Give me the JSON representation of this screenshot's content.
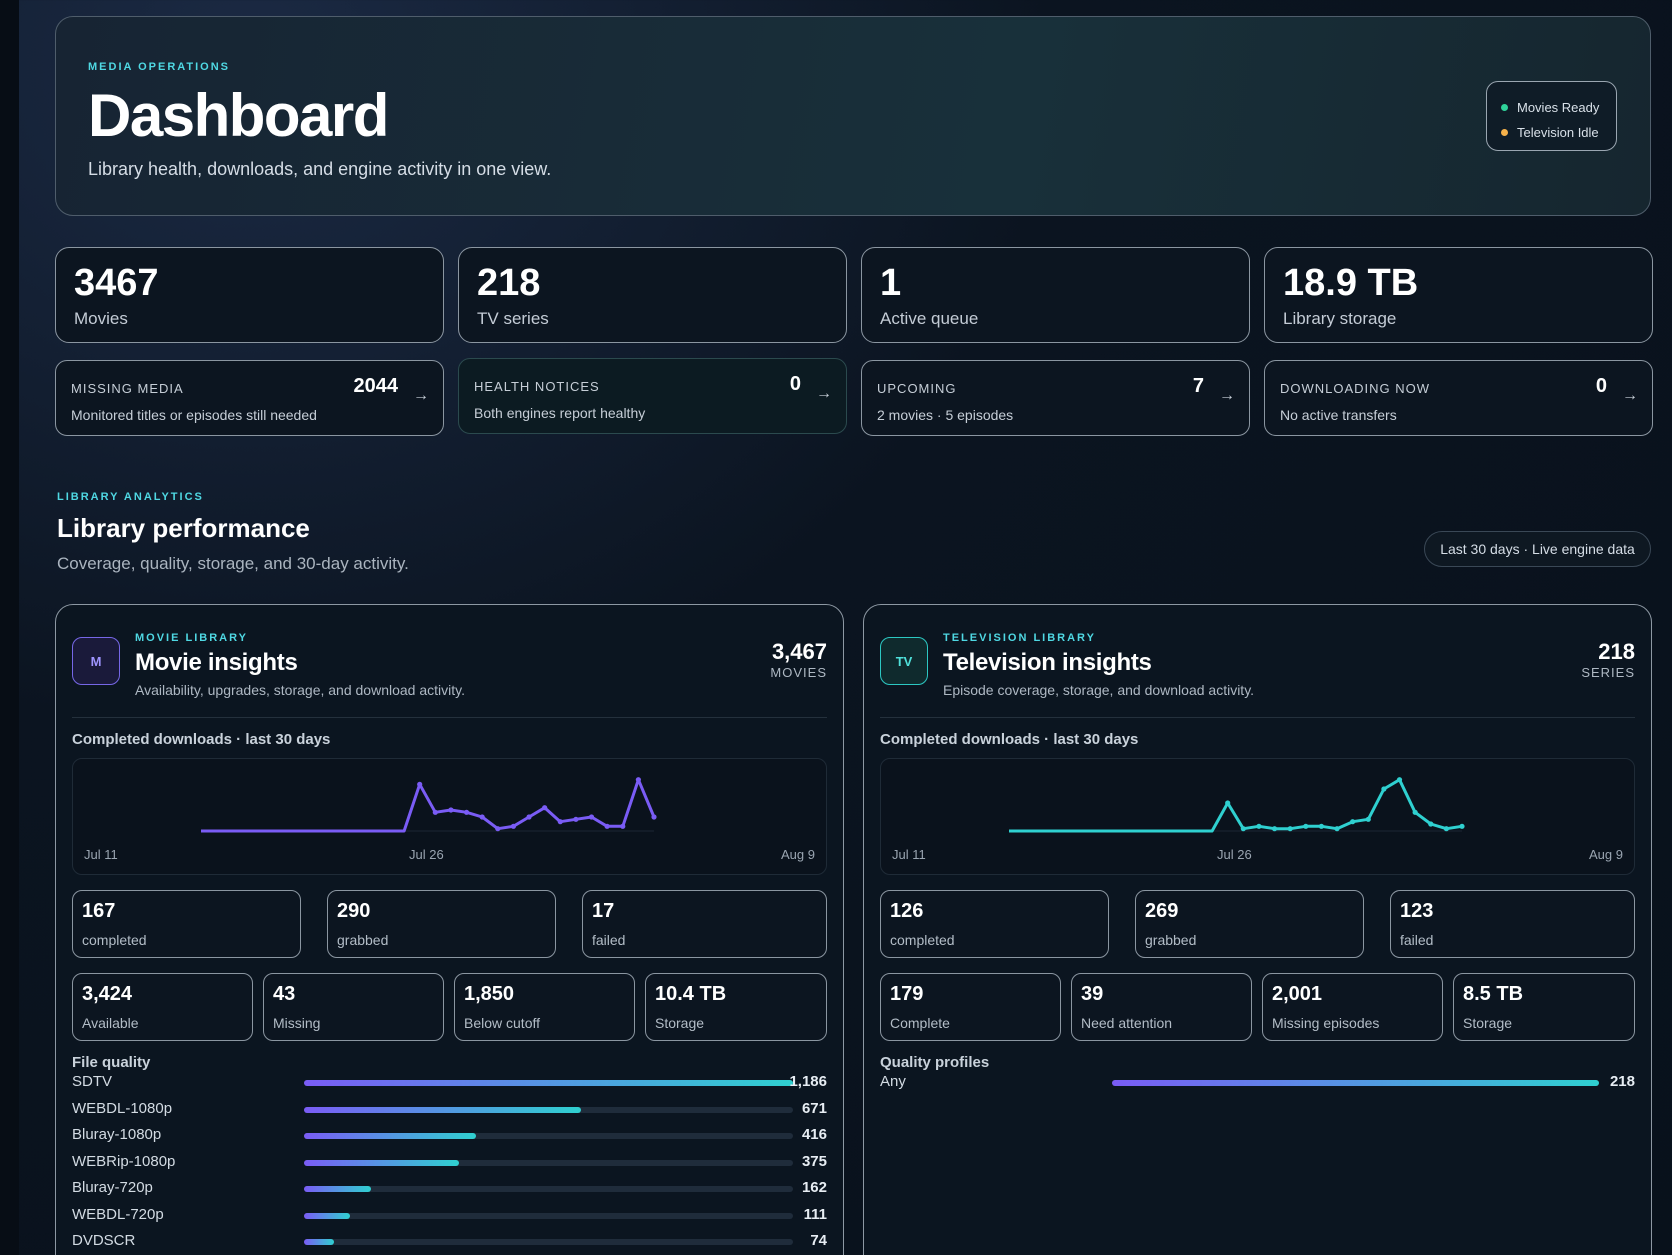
{
  "hero": {
    "eyebrow": "MEDIA OPERATIONS",
    "title": "Dashboard",
    "subtitle": "Library health, downloads, and engine activity in one view.",
    "status": [
      {
        "label": "Movies Ready",
        "color": "#2fd39a"
      },
      {
        "label": "Television Idle",
        "color": "#f5b14a"
      }
    ]
  },
  "stats": [
    {
      "value": "3467",
      "label": "Movies"
    },
    {
      "value": "218",
      "label": "TV series"
    },
    {
      "value": "1",
      "label": "Active queue"
    },
    {
      "value": "18.9 TB",
      "label": "Library storage"
    }
  ],
  "notices": [
    {
      "title": "MISSING MEDIA",
      "desc": "Monitored titles or episodes still needed",
      "value": "2044"
    },
    {
      "title": "HEALTH NOTICES",
      "desc": "Both engines report healthy",
      "value": "0"
    },
    {
      "title": "UPCOMING",
      "desc": "2 movies · 5 episodes",
      "value": "7"
    },
    {
      "title": "DOWNLOADING NOW",
      "desc": "No active transfers",
      "value": "0"
    }
  ],
  "analytics": {
    "eyebrow": "LIBRARY ANALYTICS",
    "title": "Library performance",
    "subtitle": "Coverage, quality, storage, and 30-day activity.",
    "range": "Last 30 days · Live engine data"
  },
  "movie": {
    "badge": "M",
    "eyebrow": "MOVIE LIBRARY",
    "title": "Movie insights",
    "subtitle": "Availability, upgrades, storage, and download activity.",
    "count": "3,467",
    "count_label": "MOVIES",
    "chart_title": "Completed downloads · last 30 days",
    "axis": [
      "Jul 11",
      "Jul 26",
      "Aug 9"
    ],
    "activity": [
      {
        "value": "167",
        "label": "completed"
      },
      {
        "value": "290",
        "label": "grabbed"
      },
      {
        "value": "17",
        "label": "failed"
      }
    ],
    "library": [
      {
        "value": "3,424",
        "label": "Available"
      },
      {
        "value": "43",
        "label": "Missing"
      },
      {
        "value": "1,850",
        "label": "Below cutoff"
      },
      {
        "value": "10.4 TB",
        "label": "Storage"
      }
    ],
    "quality_title": "File quality",
    "quality": [
      {
        "name": "SDTV",
        "value": "1,186",
        "fraction": 1.0
      },
      {
        "name": "WEBDL-1080p",
        "value": "671",
        "fraction": 0.566
      },
      {
        "name": "Bluray-1080p",
        "value": "416",
        "fraction": 0.351
      },
      {
        "name": "WEBRip-1080p",
        "value": "375",
        "fraction": 0.316
      },
      {
        "name": "Bluray-720p",
        "value": "162",
        "fraction": 0.137
      },
      {
        "name": "WEBDL-720p",
        "value": "111",
        "fraction": 0.094
      },
      {
        "name": "DVDSCR",
        "value": "74",
        "fraction": 0.062
      }
    ]
  },
  "tv": {
    "badge": "TV",
    "eyebrow": "TELEVISION LIBRARY",
    "title": "Television insights",
    "subtitle": "Episode coverage, storage, and download activity.",
    "count": "218",
    "count_label": "SERIES",
    "chart_title": "Completed downloads · last 30 days",
    "axis": [
      "Jul 11",
      "Jul 26",
      "Aug 9"
    ],
    "activity": [
      {
        "value": "126",
        "label": "completed"
      },
      {
        "value": "269",
        "label": "grabbed"
      },
      {
        "value": "123",
        "label": "failed"
      }
    ],
    "library": [
      {
        "value": "179",
        "label": "Complete"
      },
      {
        "value": "39",
        "label": "Need attention"
      },
      {
        "value": "2,001",
        "label": "Missing episodes"
      },
      {
        "value": "8.5 TB",
        "label": "Storage"
      }
    ],
    "quality_title": "Quality profiles",
    "quality": [
      {
        "name": "Any",
        "value": "218",
        "fraction": 1.0
      }
    ]
  },
  "chart_data": [
    {
      "type": "line",
      "series": [
        {
          "values": [
            0,
            0,
            0,
            0,
            0,
            0,
            0,
            0,
            0,
            0,
            0,
            0,
            0,
            0,
            10,
            4,
            4.5,
            4,
            3,
            0.5,
            1,
            3,
            5,
            2,
            2.5,
            3,
            1,
            1,
            11,
            3
          ],
          "color": "#7a5cf5"
        }
      ],
      "x_ticks": [
        "Jul 11",
        "Jul 26",
        "Aug 9"
      ],
      "ylim": [
        0,
        12
      ]
    },
    {
      "type": "line",
      "series": [
        {
          "values": [
            0,
            0,
            0,
            0,
            0,
            0,
            0,
            0,
            0,
            0,
            0,
            0,
            0,
            0,
            6,
            0.5,
            1,
            0.5,
            0.5,
            1,
            1,
            0.5,
            2,
            2.5,
            9,
            11,
            4,
            1.5,
            0.5,
            1
          ],
          "color": "#2fd0d0"
        }
      ],
      "x_ticks": [
        "Jul 11",
        "Jul 26",
        "Aug 9"
      ],
      "ylim": [
        0,
        12
      ]
    }
  ]
}
